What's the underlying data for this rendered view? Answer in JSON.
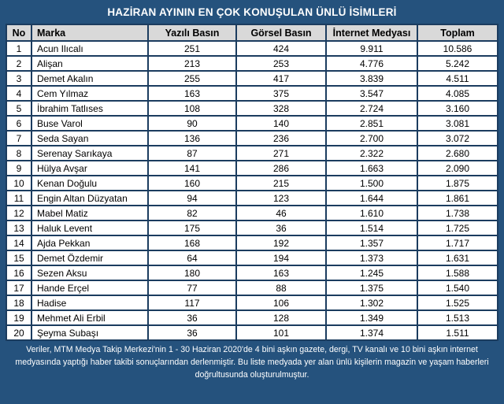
{
  "colors": {
    "frame_navy": "#25527D",
    "border_navy": "#1B3C5F",
    "header_gray": "#D9D9D9",
    "row_white": "#FFFFFF",
    "title_text": "#FFFFFF",
    "cell_text": "#000000"
  },
  "chart_data": {
    "type": "table",
    "title": "HAZİRAN AYININ EN ÇOK KONUŞULAN ÜNLÜ İSİMLERİ",
    "columns": [
      "No",
      "Marka",
      "Yazılı Basın",
      "Görsel Basın",
      "İnternet Medyası",
      "Toplam"
    ],
    "rows": [
      [
        "1",
        "Acun Ilıcalı",
        "251",
        "424",
        "9.911",
        "10.586"
      ],
      [
        "2",
        "Alişan",
        "213",
        "253",
        "4.776",
        "5.242"
      ],
      [
        "3",
        "Demet Akalın",
        "255",
        "417",
        "3.839",
        "4.511"
      ],
      [
        "4",
        "Cem Yılmaz",
        "163",
        "375",
        "3.547",
        "4.085"
      ],
      [
        "5",
        "İbrahim Tatlıses",
        "108",
        "328",
        "2.724",
        "3.160"
      ],
      [
        "6",
        "Buse Varol",
        "90",
        "140",
        "2.851",
        "3.081"
      ],
      [
        "7",
        "Seda Sayan",
        "136",
        "236",
        "2.700",
        "3.072"
      ],
      [
        "8",
        "Serenay Sarıkaya",
        "87",
        "271",
        "2.322",
        "2.680"
      ],
      [
        "9",
        "Hülya Avşar",
        "141",
        "286",
        "1.663",
        "2.090"
      ],
      [
        "10",
        "Kenan Doğulu",
        "160",
        "215",
        "1.500",
        "1.875"
      ],
      [
        "11",
        "Engin Altan Düzyatan",
        "94",
        "123",
        "1.644",
        "1.861"
      ],
      [
        "12",
        "Mabel Matiz",
        "82",
        "46",
        "1.610",
        "1.738"
      ],
      [
        "13",
        "Haluk Levent",
        "175",
        "36",
        "1.514",
        "1.725"
      ],
      [
        "14",
        "Ajda Pekkan",
        "168",
        "192",
        "1.357",
        "1.717"
      ],
      [
        "15",
        "Demet Özdemir",
        "64",
        "194",
        "1.373",
        "1.631"
      ],
      [
        "16",
        "Sezen Aksu",
        "180",
        "163",
        "1.245",
        "1.588"
      ],
      [
        "17",
        "Hande Erçel",
        "77",
        "88",
        "1.375",
        "1.540"
      ],
      [
        "18",
        "Hadise",
        "117",
        "106",
        "1.302",
        "1.525"
      ],
      [
        "19",
        "Mehmet Ali Erbil",
        "36",
        "128",
        "1.349",
        "1.513"
      ],
      [
        "20",
        "Şeyma Subaşı",
        "36",
        "101",
        "1.374",
        "1.511"
      ]
    ],
    "number_format": "Turkish thousands separator (.)",
    "legend_position": "none",
    "grid": true
  },
  "footer": {
    "note": "Veriler, MTM Medya Takip Merkezi'nin 1 - 30 Haziran 2020'de 4 bini aşkın gazete, dergi, TV kanalı ve 10 bini aşkın internet medyasında yaptığı haber takibi sonuçlarından derlenmiştir.  Bu liste medyada yer alan ünlü kişilerin magazin ve yaşam haberleri doğrultusunda oluşturulmuştur."
  }
}
